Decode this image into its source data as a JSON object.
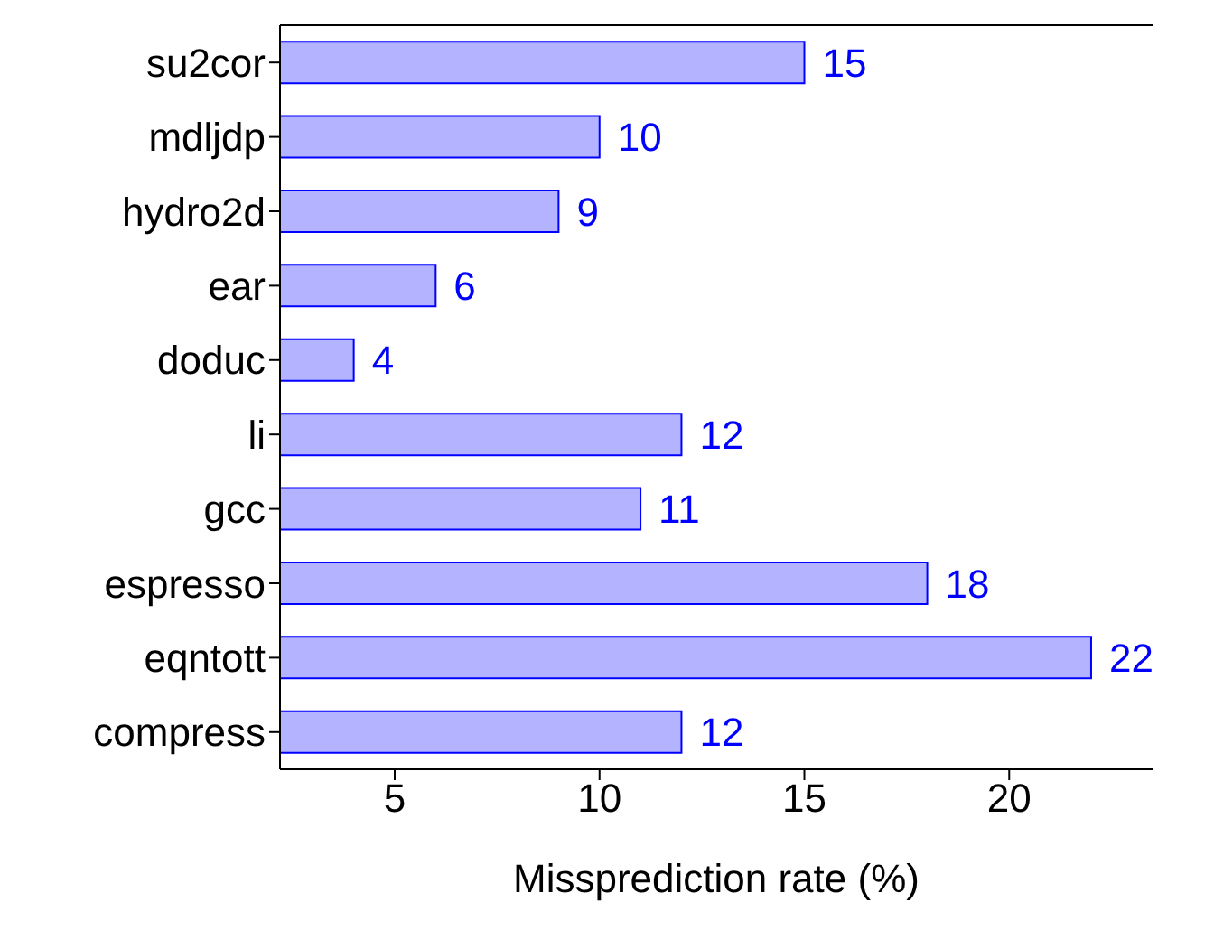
{
  "chart_data": {
    "type": "bar",
    "orientation": "horizontal",
    "xlabel": "Missprediction rate (%)",
    "categories": [
      "su2cor",
      "mdljdp",
      "hydro2d",
      "ear",
      "doduc",
      "li",
      "gcc",
      "espresso",
      "eqntott",
      "compress"
    ],
    "series": [
      {
        "color": "#b3b3ff",
        "values": [
          15,
          10,
          9,
          6,
          4,
          12,
          11,
          18,
          22,
          12
        ]
      }
    ],
    "xlim": [
      2.2,
      23.5
    ],
    "xticks": [
      5,
      10,
      15,
      20
    ],
    "data_labels": true
  }
}
